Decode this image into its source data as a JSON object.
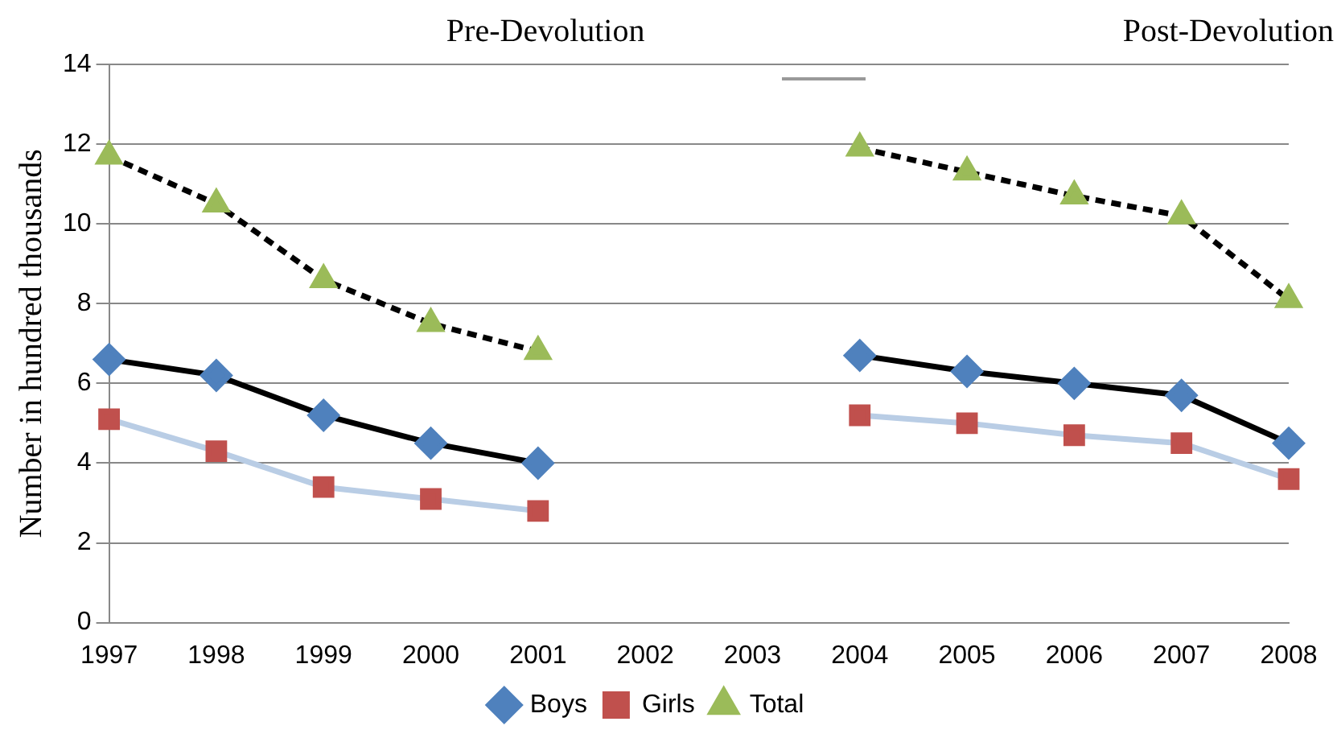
{
  "chart_data": {
    "type": "line",
    "ylabel": "Number in hundred thousands",
    "annotations": [
      "Pre-Devolution",
      "Post-Devolution"
    ],
    "categories": [
      "1997",
      "1998",
      "1999",
      "2000",
      "2001",
      "2002",
      "2003",
      "2004",
      "2005",
      "2006",
      "2007",
      "2008"
    ],
    "series": [
      {
        "name": "Boys",
        "color": "#4f81bd",
        "marker": "diamond",
        "line_style": "solid",
        "values": [
          6.6,
          6.2,
          5.2,
          4.5,
          4.0,
          null,
          null,
          6.7,
          6.3,
          6.0,
          5.7,
          4.5
        ]
      },
      {
        "name": "Girls",
        "color": "#c0504d",
        "marker": "square",
        "line_style": "solid",
        "values": [
          5.1,
          4.3,
          3.4,
          3.1,
          2.8,
          null,
          null,
          5.2,
          5.0,
          4.7,
          4.5,
          3.6
        ]
      },
      {
        "name": "Total",
        "color": "#9bbb59",
        "marker": "triangle",
        "line_style": "dashed",
        "values": [
          11.7,
          10.5,
          8.6,
          7.5,
          6.8,
          null,
          null,
          11.9,
          11.3,
          10.7,
          10.2,
          8.1
        ]
      }
    ],
    "ylim": [
      0,
      14
    ],
    "yticks": [
      0,
      2,
      4,
      6,
      8,
      10,
      12,
      14
    ],
    "grid": "y",
    "legend": "bottom"
  }
}
